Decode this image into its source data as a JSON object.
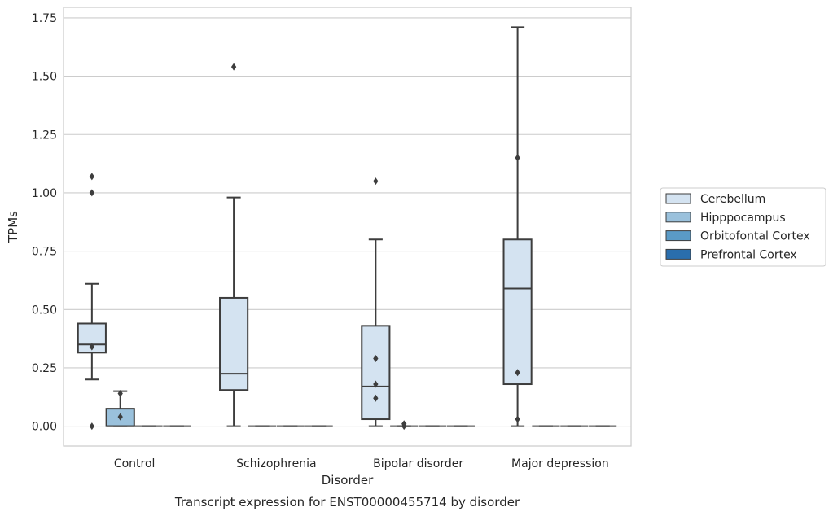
{
  "chart_data": {
    "type": "box",
    "xlabel": "Disorder",
    "ylabel": "TPMs",
    "caption": "Transcript expression for ENST00000455714 by disorder",
    "categories": [
      "Control",
      "Schizophrenia",
      "Bipolar disorder",
      "Major depression"
    ],
    "ylim": [
      -0.085,
      1.795
    ],
    "yticks": [
      0.0,
      0.25,
      0.5,
      0.75,
      1.0,
      1.25,
      1.5,
      1.75
    ],
    "ytick_labels": [
      "0.00",
      "0.25",
      "0.50",
      "0.75",
      "1.00",
      "1.25",
      "1.50",
      "1.75"
    ],
    "grid": "horizontal",
    "legend_position": "right",
    "series": [
      {
        "name": "Cerebellum",
        "color": "#d4e3f1",
        "boxes": [
          {
            "category": "Control",
            "whisker_low": 0.2,
            "q1": 0.315,
            "median": 0.35,
            "q3": 0.44,
            "whisker_high": 0.61,
            "outliers": [
              0.0,
              0.34,
              1.0,
              1.07
            ]
          },
          {
            "category": "Schizophrenia",
            "whisker_low": 0.0,
            "q1": 0.155,
            "median": 0.225,
            "q3": 0.55,
            "whisker_high": 0.98,
            "outliers": [
              1.54
            ]
          },
          {
            "category": "Bipolar disorder",
            "whisker_low": 0.0,
            "q1": 0.03,
            "median": 0.17,
            "q3": 0.43,
            "whisker_high": 0.8,
            "outliers": [
              0.12,
              0.18,
              0.29,
              1.05
            ]
          },
          {
            "category": "Major depression",
            "whisker_low": 0.0,
            "q1": 0.18,
            "median": 0.59,
            "q3": 0.8,
            "whisker_high": 1.71,
            "outliers": [
              0.03,
              0.23,
              1.15
            ]
          }
        ]
      },
      {
        "name": "Hipppocampus",
        "color": "#9ac1dc",
        "boxes": [
          {
            "category": "Control",
            "whisker_low": 0.0,
            "q1": 0.0,
            "median": 0.0,
            "q3": 0.075,
            "whisker_high": 0.15,
            "outliers": [
              0.04,
              0.14
            ]
          },
          {
            "category": "Schizophrenia",
            "whisker_low": 0.0,
            "q1": 0.0,
            "median": 0.0,
            "q3": 0.0,
            "whisker_high": 0.0,
            "outliers": []
          },
          {
            "category": "Bipolar disorder",
            "whisker_low": 0.0,
            "q1": 0.0,
            "median": 0.0,
            "q3": 0.0,
            "whisker_high": 0.0,
            "outliers": [
              0.0,
              0.01
            ]
          },
          {
            "category": "Major depression",
            "whisker_low": 0.0,
            "q1": 0.0,
            "median": 0.0,
            "q3": 0.0,
            "whisker_high": 0.0,
            "outliers": []
          }
        ]
      },
      {
        "name": "Orbitofontal Cortex",
        "color": "#5a9ac6",
        "boxes": [
          {
            "category": "Control",
            "whisker_low": 0.0,
            "q1": 0.0,
            "median": 0.0,
            "q3": 0.0,
            "whisker_high": 0.0,
            "outliers": []
          },
          {
            "category": "Schizophrenia",
            "whisker_low": 0.0,
            "q1": 0.0,
            "median": 0.0,
            "q3": 0.0,
            "whisker_high": 0.0,
            "outliers": []
          },
          {
            "category": "Bipolar disorder",
            "whisker_low": 0.0,
            "q1": 0.0,
            "median": 0.0,
            "q3": 0.0,
            "whisker_high": 0.0,
            "outliers": []
          },
          {
            "category": "Major depression",
            "whisker_low": 0.0,
            "q1": 0.0,
            "median": 0.0,
            "q3": 0.0,
            "whisker_high": 0.0,
            "outliers": []
          }
        ]
      },
      {
        "name": "Prefrontal Cortex",
        "color": "#2a6ead",
        "boxes": [
          {
            "category": "Control",
            "whisker_low": 0.0,
            "q1": 0.0,
            "median": 0.0,
            "q3": 0.0,
            "whisker_high": 0.0,
            "outliers": []
          },
          {
            "category": "Schizophrenia",
            "whisker_low": 0.0,
            "q1": 0.0,
            "median": 0.0,
            "q3": 0.0,
            "whisker_high": 0.0,
            "outliers": []
          },
          {
            "category": "Bipolar disorder",
            "whisker_low": 0.0,
            "q1": 0.0,
            "median": 0.0,
            "q3": 0.0,
            "whisker_high": 0.0,
            "outliers": []
          },
          {
            "category": "Major depression",
            "whisker_low": 0.0,
            "q1": 0.0,
            "median": 0.0,
            "q3": 0.0,
            "whisker_high": 0.0,
            "outliers": []
          }
        ]
      }
    ]
  }
}
